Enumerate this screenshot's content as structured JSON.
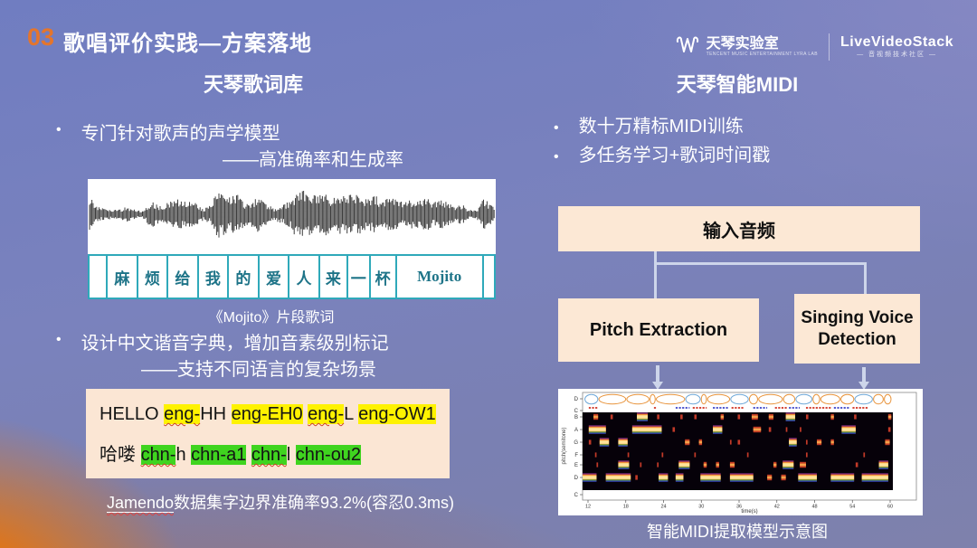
{
  "slide": {
    "section_number": "03",
    "title": "歌唱评价实践—方案落地"
  },
  "logos": {
    "lab_name": "天琴实验室",
    "lab_subtitle": "TENCENT MUSIC ENTERTAINMENT LYRA LAB",
    "community_name": "LiveVideoStack",
    "community_subtitle": "— 音视频技术社区 —"
  },
  "left": {
    "heading": "天琴歌词库",
    "bullet1": "专门针对歌声的声学模型",
    "bullet1_sub": "——高准确率和生成率",
    "lyric_cells": [
      {
        "t": "",
        "w": 4.5
      },
      {
        "t": "麻",
        "w": 7.5
      },
      {
        "t": "烦",
        "w": 7.5
      },
      {
        "t": "给",
        "w": 7.5
      },
      {
        "t": "我",
        "w": 7.5
      },
      {
        "t": "的",
        "w": 7.5
      },
      {
        "t": "爱",
        "w": 7.5
      },
      {
        "t": "人",
        "w": 7.5
      },
      {
        "t": "来",
        "w": 7.0
      },
      {
        "t": "一",
        "w": 5.5
      },
      {
        "t": "杯",
        "w": 6.5
      },
      {
        "t": "Mojito",
        "w": 21.5
      },
      {
        "t": "",
        "w": 2.5
      }
    ],
    "figure_caption": "《Mojito》片段歌词",
    "bullet2": "设计中文谐音字典，增加音素级别标记",
    "bullet2_sub": "——支持不同语言的复杂场景",
    "phoneme_line1": [
      {
        "text": "HELLO ",
        "hl": "none",
        "squiggle": false
      },
      {
        "text": "eng-",
        "hl": "yellow",
        "squiggle": true
      },
      {
        "text": "HH ",
        "hl": "none",
        "squiggle": false
      },
      {
        "text": "eng-EH0",
        "hl": "yellow",
        "squiggle": false
      },
      {
        "text": " ",
        "hl": "none",
        "squiggle": false
      },
      {
        "text": "eng-",
        "hl": "yellow",
        "squiggle": true
      },
      {
        "text": "L ",
        "hl": "none",
        "squiggle": false
      },
      {
        "text": "eng-OW1",
        "hl": "yellow",
        "squiggle": false
      }
    ],
    "phoneme_line2": [
      {
        "text": "哈喽 ",
        "hl": "none",
        "squiggle": false
      },
      {
        "text": "chn-",
        "hl": "green",
        "squiggle": true
      },
      {
        "text": "h ",
        "hl": "none",
        "squiggle": false
      },
      {
        "text": "chn-a1",
        "hl": "green",
        "squiggle": false
      },
      {
        "text": " ",
        "hl": "none",
        "squiggle": false
      },
      {
        "text": "chn-",
        "hl": "green",
        "squiggle": true
      },
      {
        "text": "l ",
        "hl": "none",
        "squiggle": false
      },
      {
        "text": "chn-ou2",
        "hl": "green",
        "squiggle": false
      }
    ],
    "result_prefix": "Jamendo",
    "result_rest": "数据集字边界准确率93.2%(容忍0.3ms)"
  },
  "right": {
    "heading": "天琴智能MIDI",
    "bullets": [
      "数十万精标MIDI训练",
      "多任务学习+歌词时间戳"
    ],
    "flow": {
      "input_label": "输入音频",
      "pitch_label": "Pitch Extraction",
      "svd_label": "Singing Voice Detection"
    },
    "figure_caption": "智能MIDI提取模型示意图"
  },
  "colors": {
    "accent_orange": "#e4752c",
    "peach_box": "#fce8d5",
    "highlight_yellow": "#fef200",
    "highlight_green": "#3fd41f",
    "teal_border": "#2fa9ba",
    "connector": "#cdd5ea"
  },
  "chart_data": {
    "type": "heatmap",
    "title": "智能MIDI提取模型示意图",
    "xlabel": "time(s)",
    "ylabel": "pitch(semitone)",
    "xticks": [
      12,
      18,
      24,
      30,
      36,
      42,
      48,
      54,
      60
    ],
    "yticks": [
      "D",
      "C",
      "B",
      "A",
      "G",
      "F",
      "E",
      "D",
      "C"
    ],
    "xrange": [
      10,
      62
    ],
    "legend": "none",
    "contours": [
      [
        0.045,
        "b"
      ],
      [
        0.09,
        "o"
      ],
      [
        0.075,
        "o"
      ],
      [
        0.02,
        "o"
      ],
      [
        0.095,
        "o"
      ],
      [
        0.05,
        "b"
      ],
      [
        0.02,
        "o"
      ],
      [
        0.075,
        "o"
      ],
      [
        0.06,
        "b"
      ],
      [
        0.03,
        "o"
      ],
      [
        0.08,
        "o"
      ],
      [
        0.04,
        "o"
      ],
      [
        0.055,
        "b"
      ],
      [
        0.025,
        "o"
      ],
      [
        0.065,
        "o"
      ],
      [
        0.045,
        "o"
      ],
      [
        0.06,
        "b"
      ],
      [
        0.035,
        "o"
      ],
      [
        0.025,
        "o"
      ]
    ],
    "onset_dashes": [
      [
        0.02,
        0.05,
        "r"
      ],
      [
        0.23,
        0.24,
        "r"
      ],
      [
        0.3,
        0.345,
        "b"
      ],
      [
        0.355,
        0.4,
        "r"
      ],
      [
        0.42,
        0.47,
        "b"
      ],
      [
        0.48,
        0.52,
        "r"
      ],
      [
        0.55,
        0.595,
        "b"
      ],
      [
        0.62,
        0.66,
        "r"
      ],
      [
        0.665,
        0.7,
        "b"
      ],
      [
        0.72,
        0.8,
        "r"
      ],
      [
        0.81,
        0.86,
        "b"
      ],
      [
        0.87,
        0.92,
        "r"
      ]
    ],
    "note_rows": [
      {
        "pitch": "B",
        "segs": [
          [
            0.035,
            0.05,
            "med"
          ],
          [
            0.09,
            0.1,
            "dim"
          ],
          [
            0.175,
            0.21,
            "hot"
          ],
          [
            0.24,
            0.25,
            "dim"
          ],
          [
            0.315,
            0.325,
            "dim"
          ],
          [
            0.36,
            0.37,
            "dim"
          ],
          [
            0.445,
            0.455,
            "med"
          ],
          [
            0.5,
            0.51,
            "dim"
          ],
          [
            0.545,
            0.565,
            "med"
          ],
          [
            0.6,
            0.615,
            "med"
          ],
          [
            0.655,
            0.685,
            "hot"
          ],
          [
            0.72,
            0.73,
            "dim"
          ],
          [
            0.8,
            0.81,
            "med"
          ],
          [
            0.875,
            0.885,
            "dim"
          ],
          [
            0.985,
            0.995,
            "med"
          ]
        ]
      },
      {
        "pitch": "A",
        "segs": [
          [
            0.02,
            0.075,
            "hot"
          ],
          [
            0.16,
            0.255,
            "hot"
          ],
          [
            0.29,
            0.3,
            "dim"
          ],
          [
            0.42,
            0.45,
            "hot"
          ],
          [
            0.55,
            0.575,
            "med"
          ],
          [
            0.6,
            0.61,
            "dim"
          ],
          [
            0.655,
            0.66,
            "dim"
          ],
          [
            0.7,
            0.705,
            "dim"
          ],
          [
            0.835,
            0.88,
            "hot"
          ],
          [
            0.985,
            0.995,
            "dim"
          ]
        ]
      },
      {
        "pitch": "G",
        "segs": [
          [
            0.02,
            0.03,
            "dim"
          ],
          [
            0.055,
            0.085,
            "hot"
          ],
          [
            0.115,
            0.145,
            "hot"
          ],
          [
            0.33,
            0.345,
            "med"
          ],
          [
            0.375,
            0.385,
            "med"
          ],
          [
            0.475,
            0.48,
            "dim"
          ],
          [
            0.5,
            0.51,
            "dim"
          ],
          [
            0.665,
            0.69,
            "hot"
          ],
          [
            0.72,
            0.725,
            "dim"
          ],
          [
            0.755,
            0.77,
            "med"
          ],
          [
            0.8,
            0.81,
            "med"
          ],
          [
            0.975,
            0.99,
            "med"
          ]
        ]
      },
      {
        "pitch": "F",
        "segs": [
          [
            0.04,
            0.045,
            "dim"
          ],
          [
            0.145,
            0.15,
            "dim"
          ],
          [
            0.255,
            0.26,
            "dim"
          ],
          [
            0.36,
            0.365,
            "dim"
          ],
          [
            0.53,
            0.535,
            "dim"
          ],
          [
            0.72,
            0.725,
            "dim"
          ],
          [
            0.905,
            0.91,
            "dim"
          ]
        ]
      },
      {
        "pitch": "E",
        "segs": [
          [
            0.045,
            0.05,
            "dim"
          ],
          [
            0.115,
            0.15,
            "hot"
          ],
          [
            0.185,
            0.19,
            "dim"
          ],
          [
            0.24,
            0.245,
            "dim"
          ],
          [
            0.31,
            0.345,
            "hot"
          ],
          [
            0.39,
            0.4,
            "med"
          ],
          [
            0.43,
            0.44,
            "med"
          ],
          [
            0.475,
            0.49,
            "med"
          ],
          [
            0.615,
            0.625,
            "med"
          ],
          [
            0.645,
            0.68,
            "hot"
          ],
          [
            0.7,
            0.72,
            "med"
          ],
          [
            0.88,
            0.89,
            "dim"
          ],
          [
            0.955,
            0.985,
            "hot"
          ]
        ]
      },
      {
        "pitch": "D",
        "segs": [
          [
            0.0,
            0.045,
            "hot"
          ],
          [
            0.075,
            0.155,
            "hot"
          ],
          [
            0.17,
            0.18,
            "dim"
          ],
          [
            0.245,
            0.275,
            "hot"
          ],
          [
            0.3,
            0.325,
            "hot"
          ],
          [
            0.38,
            0.445,
            "hot"
          ],
          [
            0.475,
            0.55,
            "hot"
          ],
          [
            0.595,
            0.61,
            "med"
          ],
          [
            0.64,
            0.655,
            "med"
          ],
          [
            0.695,
            0.755,
            "hot"
          ],
          [
            0.8,
            0.875,
            "hot"
          ],
          [
            0.9,
            0.985,
            "hot"
          ]
        ]
      }
    ]
  }
}
